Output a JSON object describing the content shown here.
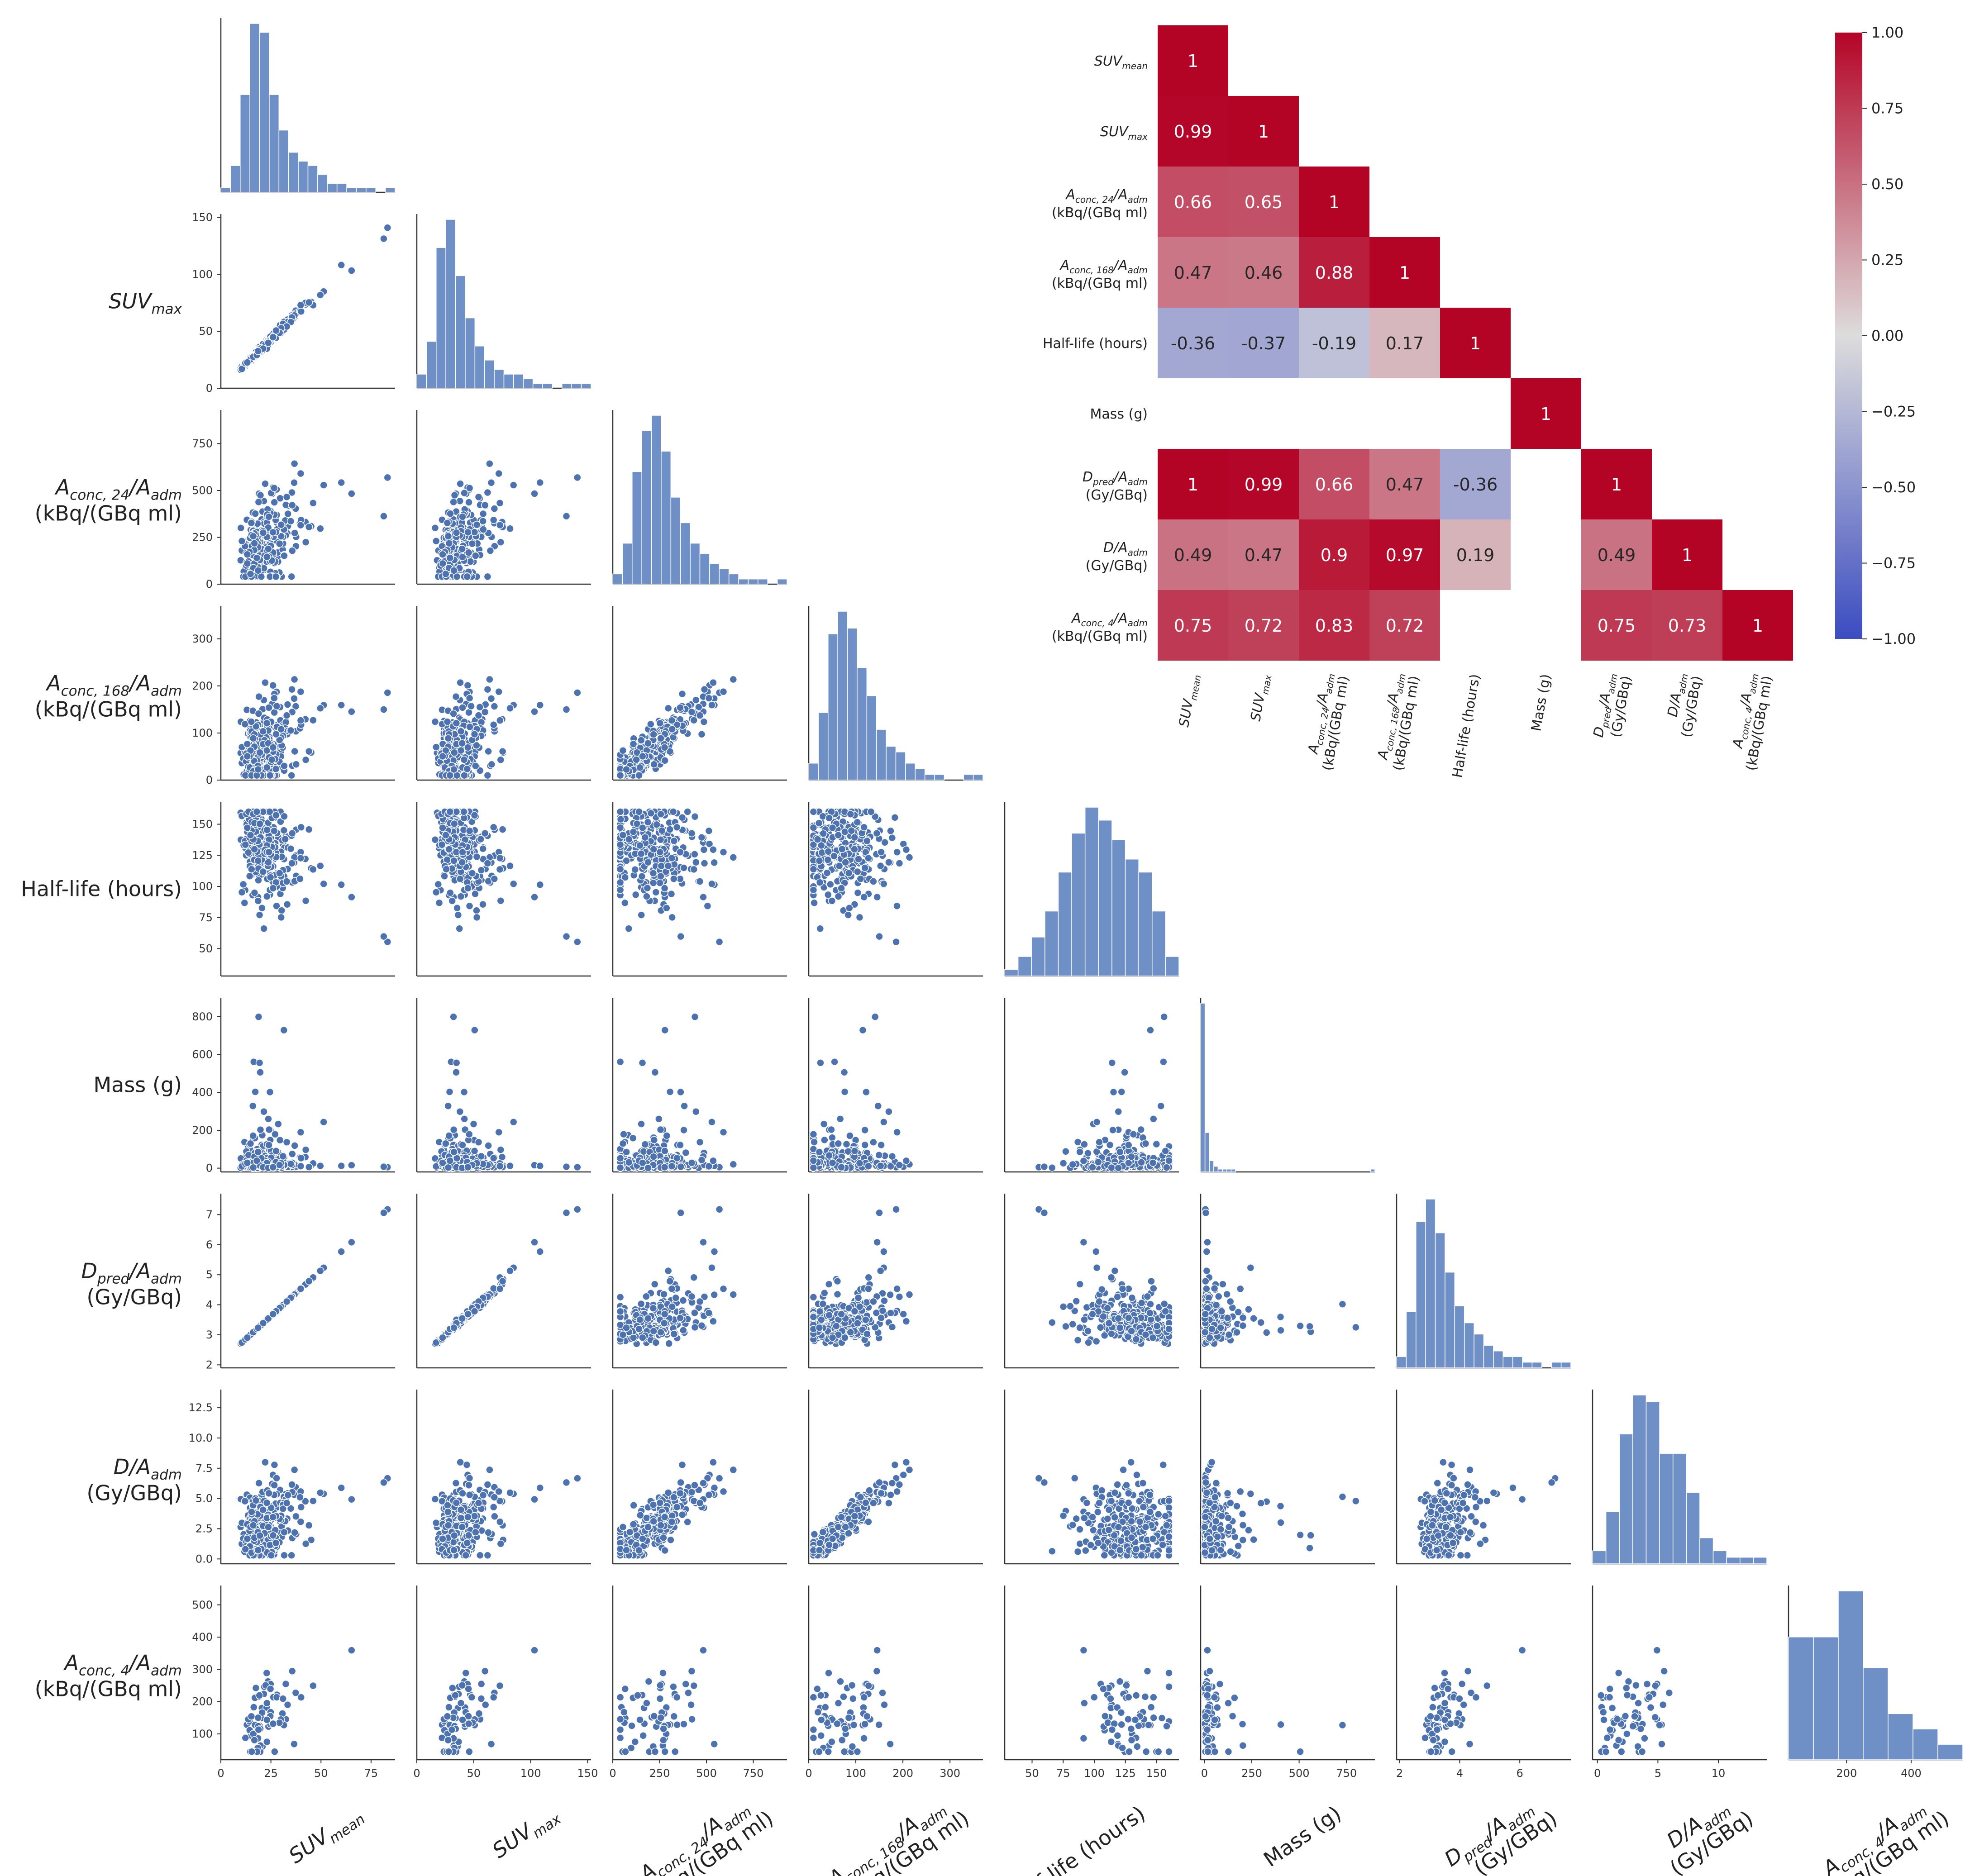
{
  "chart_data": [
    {
      "type": "scatter",
      "layout": "pairplot-lower",
      "variables": [
        {
          "key": "suv_mean",
          "label_main": "SUV",
          "label_sub": "mean",
          "label_line2": "",
          "ticks": [
            0,
            25,
            50,
            75
          ],
          "range": [
            0,
            87
          ]
        },
        {
          "key": "suv_max",
          "label_main": "SUV",
          "label_sub": "max",
          "label_line2": "",
          "ticks": [
            0,
            50,
            100,
            150
          ],
          "range": [
            0,
            153
          ]
        },
        {
          "key": "aconc24",
          "label_main": "A",
          "label_sub": "conc, 24",
          "label_tail": "/A",
          "label_tail_sub": "adm",
          "label_line2": "(kBq/(GBq ml)",
          "ticks": [
            0,
            250,
            500,
            750
          ],
          "range": [
            0,
            930
          ]
        },
        {
          "key": "aconc168",
          "label_main": "A",
          "label_sub": "conc, 168",
          "label_tail": "/A",
          "label_tail_sub": "adm",
          "label_line2": "(kBq/(GBq ml)",
          "ticks": [
            0,
            100,
            200,
            300
          ],
          "range": [
            0,
            370
          ]
        },
        {
          "key": "half_life",
          "label_main": "Half-life (hours)",
          "label_sub": "",
          "label_line2": "",
          "ticks": [
            50,
            75,
            100,
            125,
            150
          ],
          "range": [
            28,
            168
          ]
        },
        {
          "key": "mass",
          "label_main": "Mass (g)",
          "label_sub": "",
          "label_line2": "",
          "ticks": [
            0,
            200,
            400,
            600,
            800
          ],
          "xticks": [
            0,
            250,
            500,
            750
          ],
          "range": [
            -20,
            900
          ]
        },
        {
          "key": "dpred",
          "label_main": "D",
          "label_sub": "pred",
          "label_tail": "/A",
          "label_tail_sub": "adm",
          "label_line2": "(Gy/GBq)",
          "ticks": [
            2,
            3,
            4,
            5,
            6,
            7
          ],
          "xticks": [
            2,
            4,
            6
          ],
          "range": [
            1.9,
            7.7
          ]
        },
        {
          "key": "d",
          "label_main": "D",
          "label_sub": "",
          "label_tail": "/A",
          "label_tail_sub": "adm",
          "label_line2": "(Gy/GBq)",
          "ticks": [
            0.0,
            2.5,
            5.0,
            7.5,
            10.0,
            12.5
          ],
          "tick_labels": [
            "0.0",
            "2.5",
            "5.0",
            "7.5",
            "10.0",
            "12.5"
          ],
          "xticks": [
            0,
            5,
            10
          ],
          "range": [
            -0.4,
            14
          ]
        },
        {
          "key": "aconc4",
          "label_main": "A",
          "label_sub": "conc, 4",
          "label_tail": "/A",
          "label_tail_sub": "adm",
          "label_line2": "(kBq/(GBq ml)",
          "ticks": [
            100,
            200,
            300,
            400,
            500
          ],
          "xticks": [
            200,
            400
          ],
          "range": [
            20,
            560
          ]
        }
      ],
      "histograms": [
        [
          1,
          6,
          22,
          38,
          36,
          22,
          14,
          9,
          7,
          6,
          4,
          2,
          2,
          1,
          1,
          1,
          0,
          1
        ],
        [
          3,
          10,
          30,
          36,
          24,
          15,
          9,
          6,
          4,
          3,
          3,
          2,
          1,
          1,
          0,
          1,
          1,
          1
        ],
        [
          2,
          8,
          22,
          30,
          33,
          26,
          17,
          12,
          8,
          6,
          4,
          3,
          2,
          1,
          1,
          1,
          0,
          1
        ],
        [
          3,
          12,
          26,
          30,
          27,
          20,
          15,
          9,
          6,
          5,
          3,
          2,
          1,
          1,
          0,
          0,
          1,
          1
        ],
        [
          1,
          3,
          6,
          10,
          16,
          22,
          26,
          24,
          21,
          18,
          16,
          10,
          3
        ],
        [
          60,
          14,
          4,
          2,
          1,
          1,
          1,
          1,
          0,
          0,
          0,
          0,
          0,
          0,
          0,
          0,
          0,
          0,
          0,
          0,
          0,
          0,
          0,
          0,
          0,
          0,
          0,
          0,
          0,
          0,
          0,
          0,
          0,
          0,
          0,
          0,
          0,
          0,
          0,
          1
        ],
        [
          2,
          10,
          26,
          30,
          24,
          17,
          11,
          8,
          6,
          4,
          3,
          2,
          2,
          1,
          1,
          0,
          1,
          1
        ],
        [
          2,
          8,
          20,
          26,
          25,
          17,
          17,
          11,
          4,
          2,
          1,
          1,
          1
        ],
        [
          8,
          8,
          11,
          6,
          3,
          2,
          1
        ]
      ]
    },
    {
      "type": "heatmap",
      "row_labels": [
        {
          "main": "SUV",
          "sub": "mean",
          "tail": "",
          "tail_sub": "",
          "line2": ""
        },
        {
          "main": "SUV",
          "sub": "max",
          "tail": "",
          "tail_sub": "",
          "line2": ""
        },
        {
          "main": "A",
          "sub": "conc, 24",
          "tail": "/A",
          "tail_sub": "adm",
          "line2": "(kBq/(GBq ml)"
        },
        {
          "main": "A",
          "sub": "conc, 168",
          "tail": "/A",
          "tail_sub": "adm",
          "line2": "(kBq/(GBq ml)"
        },
        {
          "main": "Half-life (hours)",
          "sub": "",
          "tail": "",
          "tail_sub": "",
          "line2": ""
        },
        {
          "main": "Mass (g)",
          "sub": "",
          "tail": "",
          "tail_sub": "",
          "line2": ""
        },
        {
          "main": "D",
          "sub": "pred",
          "tail": "/A",
          "tail_sub": "adm",
          "line2": "(Gy/GBq)"
        },
        {
          "main": "D",
          "sub": "",
          "tail": "/A",
          "tail_sub": "adm",
          "line2": "(Gy/GBq)"
        },
        {
          "main": "A",
          "sub": "conc, 4",
          "tail": "/A",
          "tail_sub": "adm",
          "line2": "(kBq/(GBq ml)"
        }
      ],
      "values": [
        [
          1.0
        ],
        [
          0.99,
          1.0
        ],
        [
          0.66,
          0.65,
          1.0
        ],
        [
          0.47,
          0.46,
          0.88,
          1.0
        ],
        [
          -0.36,
          -0.37,
          -0.19,
          0.17,
          1.0
        ],
        [
          null,
          null,
          null,
          null,
          null,
          1.0
        ],
        [
          1.0,
          0.99,
          0.66,
          0.47,
          -0.36,
          null,
          1.0
        ],
        [
          0.49,
          0.47,
          0.9,
          0.97,
          0.19,
          null,
          0.49,
          1.0
        ],
        [
          0.75,
          0.72,
          0.83,
          0.72,
          null,
          null,
          0.75,
          0.73,
          1.0
        ]
      ],
      "cell_text": [
        [
          "1"
        ],
        [
          "0.99",
          "1"
        ],
        [
          "0.66",
          "0.65",
          "1"
        ],
        [
          "0.47",
          "0.46",
          "0.88",
          "1"
        ],
        [
          "-0.36",
          "-0.37",
          "-0.19",
          "0.17",
          "1"
        ],
        [
          "",
          "",
          "",
          "",
          "",
          "1"
        ],
        [
          "1",
          "0.99",
          "0.66",
          "0.47",
          "-0.36",
          "",
          "1"
        ],
        [
          "0.49",
          "0.47",
          "0.9",
          "0.97",
          "0.19",
          "",
          "0.49",
          "1"
        ],
        [
          "0.75",
          "0.72",
          "0.83",
          "0.72",
          "",
          "",
          "0.75",
          "0.73",
          "1"
        ]
      ],
      "colorbar": {
        "range": [
          -1.0,
          1.0
        ],
        "ticks": [
          1.0,
          0.75,
          0.5,
          0.25,
          0.0,
          -0.25,
          -0.5,
          -0.75,
          -1.0
        ],
        "tick_labels": [
          "1.00",
          "0.75",
          "0.50",
          "0.25",
          "0.00",
          "−0.25",
          "−0.50",
          "−0.75",
          "−1.00"
        ],
        "colormap": "coolwarm"
      }
    }
  ],
  "colors": {
    "points": "#4c72b0",
    "hist_bars": "#6f8fc7",
    "cold": "#3b4cc0",
    "neutral": "#dddcdc",
    "warm": "#b40426"
  }
}
